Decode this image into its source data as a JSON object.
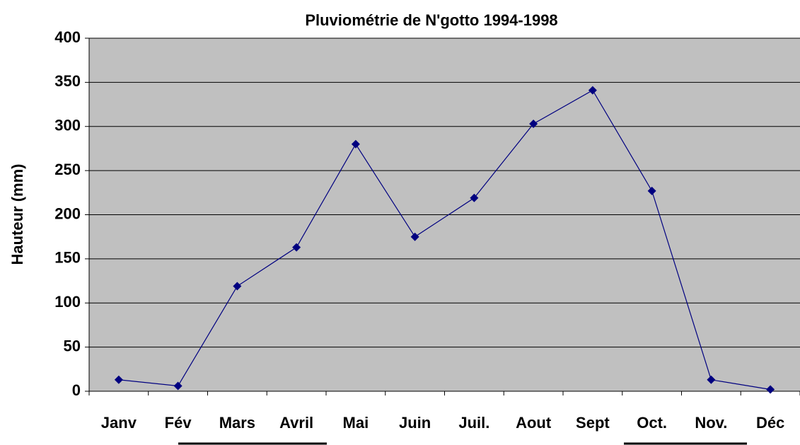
{
  "chart_data": {
    "type": "line",
    "title": "Pluviométrie de N'gotto 1994-1998",
    "y_label": "Hauteur (mm)",
    "categories": [
      "Janv",
      "Fév",
      "Mars",
      "Avril",
      "Mai",
      "Juin",
      "Juil.",
      "Aout",
      "Sept",
      "Oct.",
      "Nov.",
      "Déc"
    ],
    "values": [
      13,
      6,
      119,
      163,
      280,
      175,
      219,
      303,
      341,
      227,
      13,
      2
    ],
    "color": "#000080",
    "ylim": [
      0,
      400
    ],
    "yticks": [
      0,
      50,
      100,
      150,
      200,
      250,
      300,
      350,
      400
    ],
    "grid": true
  }
}
